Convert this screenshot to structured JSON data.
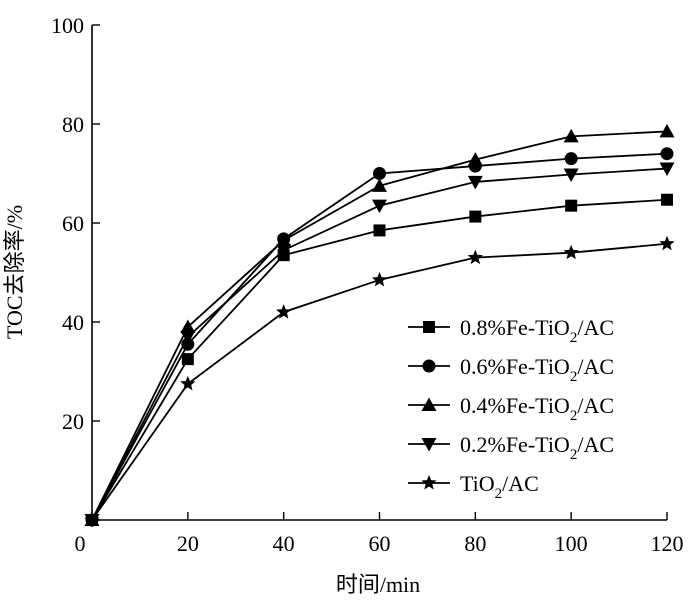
{
  "chart_data": {
    "type": "line",
    "xlabel": "时间/min",
    "ylabel": "TOC去除率/%",
    "xlim": [
      0,
      120
    ],
    "ylim": [
      0,
      100
    ],
    "xticks": [
      0,
      20,
      40,
      60,
      80,
      100,
      120
    ],
    "yticks": [
      0,
      20,
      40,
      60,
      80,
      100
    ],
    "x": [
      0,
      20,
      40,
      60,
      80,
      100,
      120
    ],
    "legend_position": "bottom-right",
    "grid": false,
    "series": [
      {
        "name": "0.8%Fe-TiO2/AC",
        "label_main": "0.8%Fe-TiO",
        "label_sub": "2",
        "label_tail": "/AC",
        "marker": "square",
        "values": [
          0,
          32.5,
          53.5,
          58.5,
          61.3,
          63.5,
          64.7
        ]
      },
      {
        "name": "0.6%Fe-TiO2/AC",
        "label_main": "0.6%Fe-TiO",
        "label_sub": "2",
        "label_tail": "/AC",
        "marker": "circle",
        "values": [
          0,
          35.5,
          56.8,
          70.0,
          71.5,
          73.0,
          74.0
        ]
      },
      {
        "name": "0.4%Fe-TiO2/AC",
        "label_main": "0.4%Fe-TiO",
        "label_sub": "2",
        "label_tail": "/AC",
        "marker": "triangle-up",
        "values": [
          0,
          39.0,
          56.5,
          67.5,
          72.8,
          77.5,
          78.5
        ]
      },
      {
        "name": "0.2%Fe-TiO2/AC",
        "label_main": "0.2%Fe-TiO",
        "label_sub": "2",
        "label_tail": "/AC",
        "marker": "triangle-down",
        "values": [
          0,
          37.0,
          54.5,
          63.5,
          68.3,
          69.8,
          71.0
        ]
      },
      {
        "name": "TiO2/AC",
        "label_main": "TiO",
        "label_sub": "2",
        "label_tail": "/AC",
        "marker": "star",
        "values": [
          0,
          27.5,
          42.0,
          48.5,
          53.0,
          54.0,
          55.8
        ]
      }
    ]
  }
}
